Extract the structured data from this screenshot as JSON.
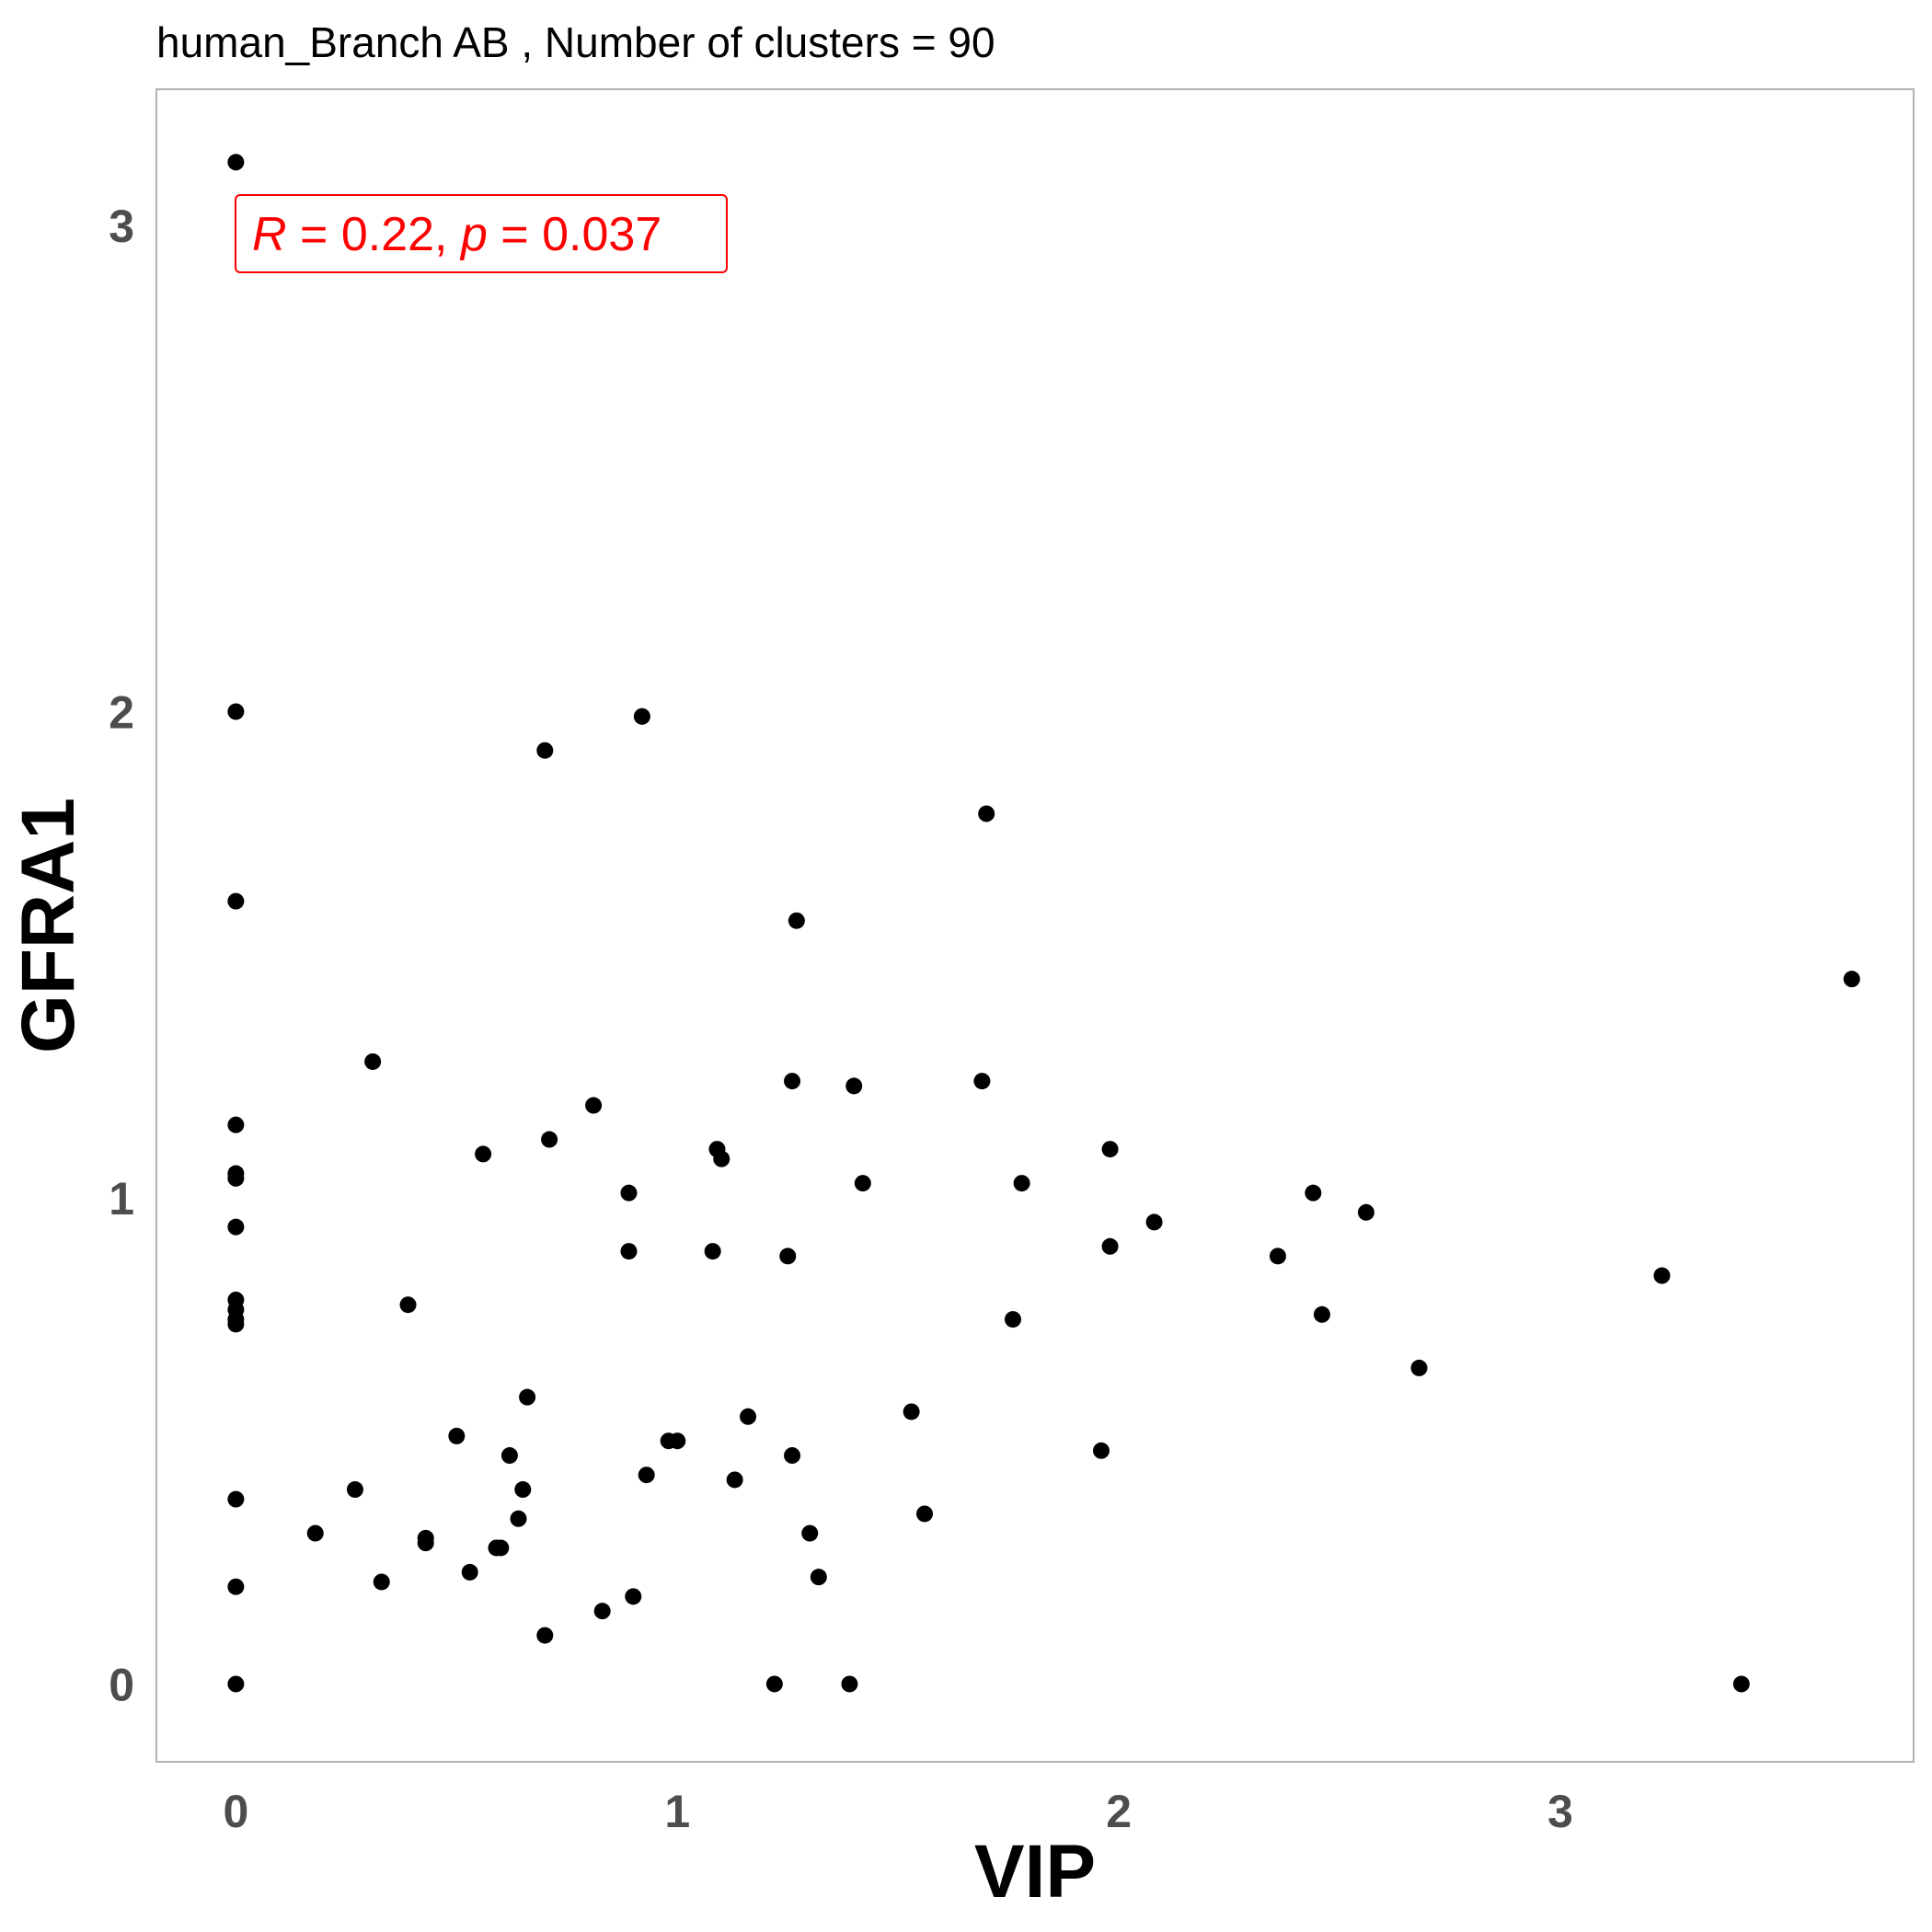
{
  "chart_data": {
    "type": "scatter",
    "title": "human_Branch AB , Number of clusters =  90",
    "xlabel": "VIP",
    "ylabel": "GFRA1",
    "xlim": [
      -0.18,
      3.8
    ],
    "ylim": [
      -0.16,
      3.28
    ],
    "x_ticks": [
      "0",
      "1",
      "2",
      "3"
    ],
    "y_ticks": [
      "0",
      "1",
      "2",
      "3"
    ],
    "grid": false,
    "point_color": "#000000",
    "annotation": {
      "r_symbol": "R",
      "r_text": " = 0.22, ",
      "p_symbol": "p",
      "p_text": " = 0.037",
      "color": "#ff0000"
    },
    "points": [
      {
        "x": 0,
        "y": 3.13
      },
      {
        "x": 0,
        "y": 2.0
      },
      {
        "x": 0,
        "y": 1.61
      },
      {
        "x": 0,
        "y": 1.15
      },
      {
        "x": 0,
        "y": 1.05
      },
      {
        "x": 0,
        "y": 1.04
      },
      {
        "x": 0,
        "y": 0.94
      },
      {
        "x": 0,
        "y": 0.79
      },
      {
        "x": 0,
        "y": 0.77
      },
      {
        "x": 0,
        "y": 0.75
      },
      {
        "x": 0,
        "y": 0.74
      },
      {
        "x": 0,
        "y": 0.38
      },
      {
        "x": 0,
        "y": 0.2
      },
      {
        "x": 0,
        "y": 0.0
      },
      {
        "x": 0.18,
        "y": 0.31
      },
      {
        "x": 0.27,
        "y": 0.4
      },
      {
        "x": 0.31,
        "y": 1.28
      },
      {
        "x": 0.33,
        "y": 0.21
      },
      {
        "x": 0.39,
        "y": 0.78
      },
      {
        "x": 0.43,
        "y": 0.3
      },
      {
        "x": 0.43,
        "y": 0.29
      },
      {
        "x": 0.5,
        "y": 0.51
      },
      {
        "x": 0.53,
        "y": 0.23
      },
      {
        "x": 0.56,
        "y": 1.09
      },
      {
        "x": 0.59,
        "y": 0.28
      },
      {
        "x": 0.6,
        "y": 0.28
      },
      {
        "x": 0.62,
        "y": 0.47
      },
      {
        "x": 0.64,
        "y": 0.34
      },
      {
        "x": 0.65,
        "y": 0.4
      },
      {
        "x": 0.66,
        "y": 0.59
      },
      {
        "x": 0.7,
        "y": 1.92
      },
      {
        "x": 0.7,
        "y": 0.1
      },
      {
        "x": 0.71,
        "y": 1.12
      },
      {
        "x": 0.81,
        "y": 1.19
      },
      {
        "x": 0.83,
        "y": 0.15
      },
      {
        "x": 0.89,
        "y": 1.01
      },
      {
        "x": 0.89,
        "y": 0.89
      },
      {
        "x": 0.9,
        "y": 0.18
      },
      {
        "x": 0.92,
        "y": 1.99
      },
      {
        "x": 0.93,
        "y": 0.43
      },
      {
        "x": 0.98,
        "y": 0.5
      },
      {
        "x": 1.0,
        "y": 0.5
      },
      {
        "x": 1.08,
        "y": 0.89
      },
      {
        "x": 1.09,
        "y": 1.1
      },
      {
        "x": 1.1,
        "y": 1.08
      },
      {
        "x": 1.13,
        "y": 0.42
      },
      {
        "x": 1.16,
        "y": 0.55
      },
      {
        "x": 1.22,
        "y": 0.0
      },
      {
        "x": 1.25,
        "y": 0.88
      },
      {
        "x": 1.26,
        "y": 1.24
      },
      {
        "x": 1.26,
        "y": 0.47
      },
      {
        "x": 1.27,
        "y": 1.57
      },
      {
        "x": 1.3,
        "y": 0.31
      },
      {
        "x": 1.32,
        "y": 0.22
      },
      {
        "x": 1.39,
        "y": 0.0
      },
      {
        "x": 1.4,
        "y": 1.23
      },
      {
        "x": 1.42,
        "y": 1.03
      },
      {
        "x": 1.53,
        "y": 0.56
      },
      {
        "x": 1.56,
        "y": 0.35
      },
      {
        "x": 1.69,
        "y": 1.24
      },
      {
        "x": 1.7,
        "y": 1.79
      },
      {
        "x": 1.76,
        "y": 0.75
      },
      {
        "x": 1.78,
        "y": 1.03
      },
      {
        "x": 1.96,
        "y": 0.48
      },
      {
        "x": 1.98,
        "y": 1.1
      },
      {
        "x": 1.98,
        "y": 0.9
      },
      {
        "x": 2.08,
        "y": 0.95
      },
      {
        "x": 2.36,
        "y": 0.88
      },
      {
        "x": 2.44,
        "y": 1.01
      },
      {
        "x": 2.46,
        "y": 0.76
      },
      {
        "x": 2.56,
        "y": 0.97
      },
      {
        "x": 2.68,
        "y": 0.65
      },
      {
        "x": 3.23,
        "y": 0.84
      },
      {
        "x": 3.41,
        "y": 0.0
      },
      {
        "x": 3.66,
        "y": 1.45
      }
    ]
  }
}
